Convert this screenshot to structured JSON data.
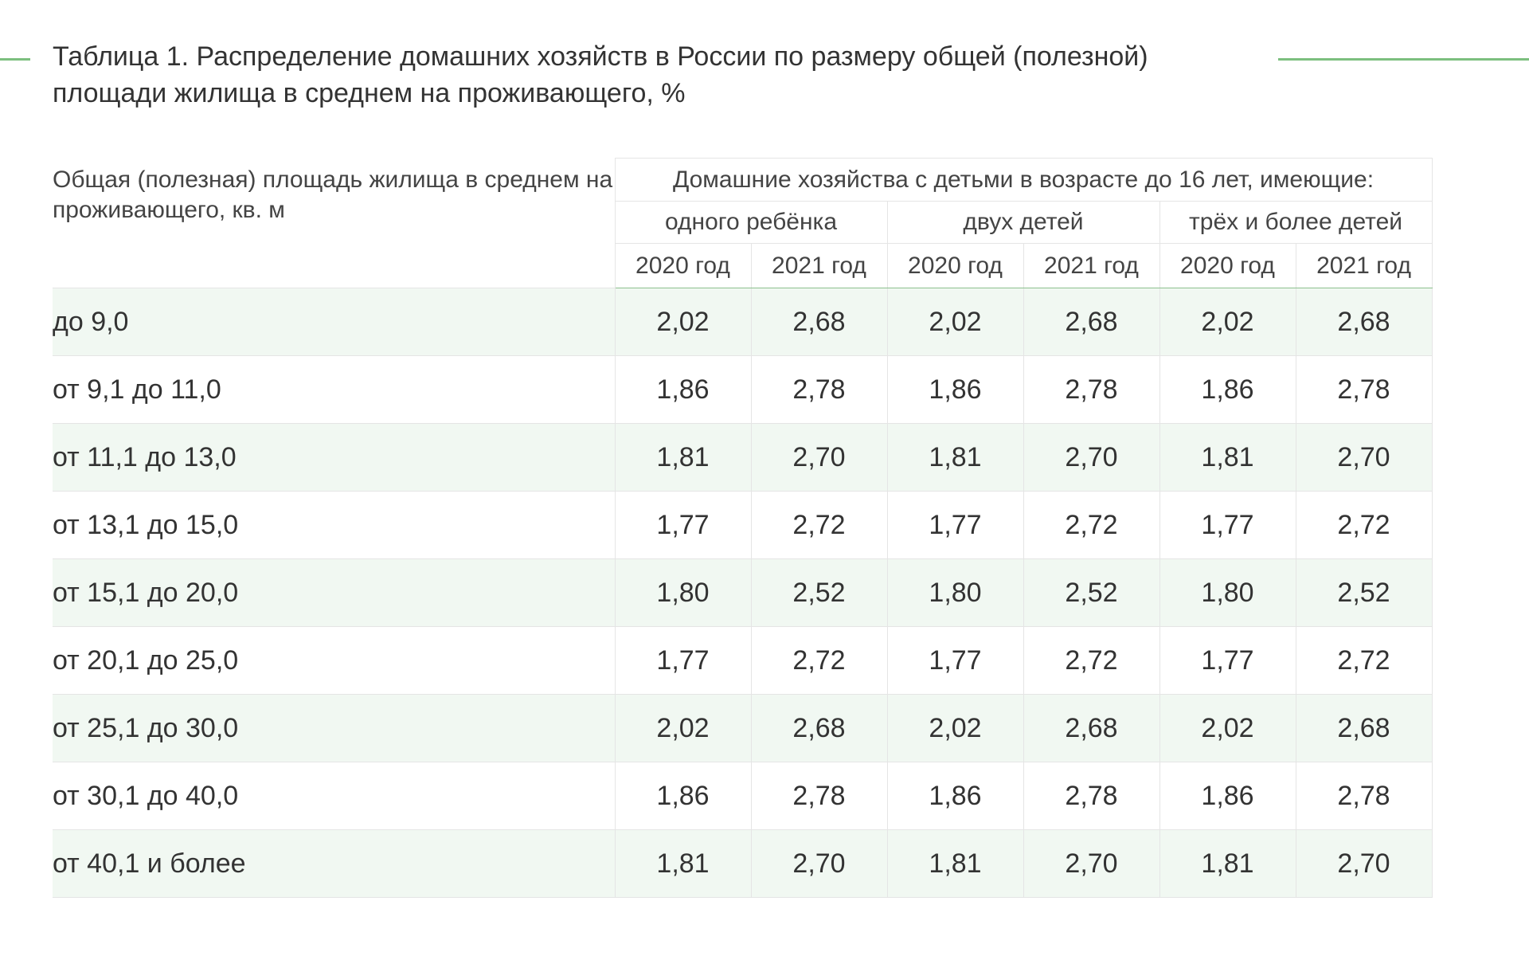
{
  "title": "Таблица 1. Распределение домашних хозяйств в России по размеру общей (полезной) площади жилища в среднем на проживающего, %",
  "table": {
    "row_header": "Общая (полезная) площадь жилища в среднем на проживающего, кв. м",
    "group_header": "Домашние хозяйства с детьми в возрасте до 16 лет, имеющие:",
    "subgroups": [
      "одного ребёнка",
      "двух детей",
      "трёх и более детей"
    ],
    "years": [
      "2020 год",
      "2021 год",
      "2020 год",
      "2021 год",
      "2020 год",
      "2021 год"
    ],
    "rows": [
      {
        "label": "до 9,0",
        "values": [
          "2,02",
          "2,68",
          "2,02",
          "2,68",
          "2,02",
          "2,68"
        ]
      },
      {
        "label": "от 9,1 до 11,0",
        "values": [
          "1,86",
          "2,78",
          "1,86",
          "2,78",
          "1,86",
          "2,78"
        ]
      },
      {
        "label": "от 11,1 до 13,0",
        "values": [
          "1,81",
          "2,70",
          "1,81",
          "2,70",
          "1,81",
          "2,70"
        ]
      },
      {
        "label": "от 13,1 до 15,0",
        "values": [
          "1,77",
          "2,72",
          "1,77",
          "2,72",
          "1,77",
          "2,72"
        ]
      },
      {
        "label": "от 15,1 до 20,0",
        "values": [
          "1,80",
          "2,52",
          "1,80",
          "2,52",
          "1,80",
          "2,52"
        ]
      },
      {
        "label": "от 20,1 до 25,0",
        "values": [
          "1,77",
          "2,72",
          "1,77",
          "2,72",
          "1,77",
          "2,72"
        ]
      },
      {
        "label": "от 25,1 до 30,0",
        "values": [
          "2,02",
          "2,68",
          "2,02",
          "2,68",
          "2,02",
          "2,68"
        ]
      },
      {
        "label": "от 30,1 до 40,0",
        "values": [
          "1,86",
          "2,78",
          "1,86",
          "2,78",
          "1,86",
          "2,78"
        ]
      },
      {
        "label": "от 40,1 и более",
        "values": [
          "1,81",
          "2,70",
          "1,81",
          "2,70",
          "1,81",
          "2,70"
        ]
      }
    ]
  },
  "colors": {
    "accent_green": "#7cbf7f",
    "row_stripe": "#f1f8f2",
    "text": "#333333",
    "grid": "#e5e5e5"
  }
}
